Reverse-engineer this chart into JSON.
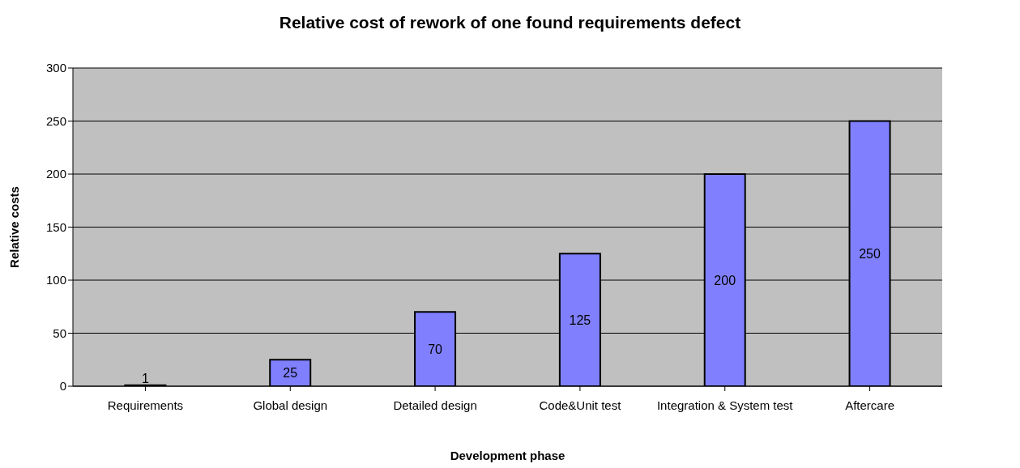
{
  "chart_data": {
    "type": "bar",
    "title": "Relative cost of rework of one found requirements defect",
    "xlabel": "Development phase",
    "ylabel": "Relative costs",
    "categories": [
      "Requirements",
      "Global design",
      "Detailed design",
      "Code&Unit test",
      "Integration & System test",
      "Aftercare"
    ],
    "values": [
      1,
      25,
      70,
      125,
      200,
      250
    ],
    "color": "#8080ff",
    "ylim": [
      0,
      300
    ],
    "yticks": [
      0,
      50,
      100,
      150,
      200,
      250,
      300
    ],
    "grid": "y",
    "data_labels": true
  }
}
